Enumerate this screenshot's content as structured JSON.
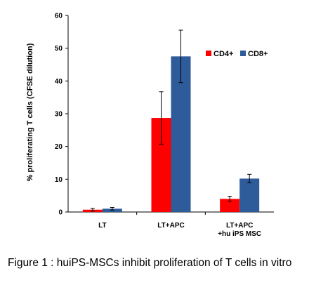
{
  "caption": "Figure 1 : huiPS-MSCs inhibit proliferation of T cells in vitro",
  "chart_data": {
    "type": "bar",
    "ylabel": "% proliferating T cells (CFSE dilution)",
    "ylim": [
      0,
      60
    ],
    "yticks": [
      0,
      10,
      20,
      30,
      40,
      50,
      60
    ],
    "categories": [
      [
        "LT"
      ],
      [
        "LT+APC"
      ],
      [
        "LT+APC",
        "+hu iPS MSC"
      ]
    ],
    "series": [
      {
        "name": "CD4+",
        "color": "#ff0000",
        "values": [
          0.7,
          28.7,
          4.0
        ],
        "errors": [
          0.4,
          8.0,
          0.8
        ]
      },
      {
        "name": "CD8+",
        "color": "#2e5b9a",
        "values": [
          1.0,
          47.5,
          10.2
        ],
        "errors": [
          0.4,
          8.0,
          1.3
        ]
      }
    ],
    "legend_position": "top-right",
    "grid": false
  }
}
